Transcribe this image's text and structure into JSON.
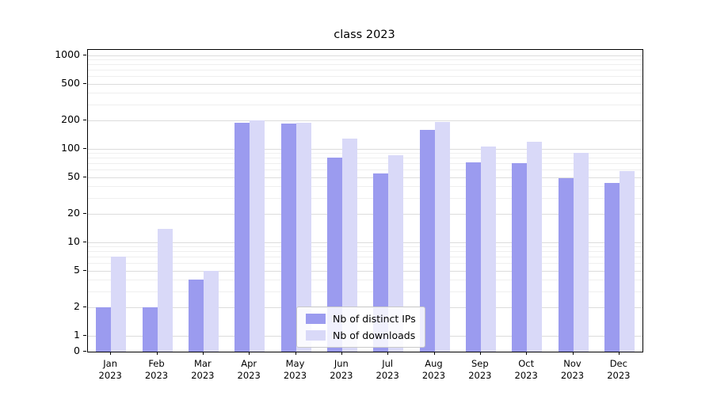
{
  "chart_data": {
    "type": "bar",
    "title": "class 2023",
    "categories": [
      "Jan",
      "Feb",
      "Mar",
      "Apr",
      "May",
      "Jun",
      "Jul",
      "Aug",
      "Sep",
      "Oct",
      "Nov",
      "Dec"
    ],
    "year_label": "2023",
    "xlabel": "",
    "ylabel": "",
    "yticks": [
      0,
      1,
      2,
      5,
      10,
      20,
      50,
      100,
      200,
      500,
      1000
    ],
    "ylim": [
      0,
      1000
    ],
    "yscale": "symlog",
    "grid": true,
    "legend_position": "lower center",
    "series": [
      {
        "name": "Nb of distinct IPs",
        "color": "#9b9bef",
        "values": [
          2,
          2,
          4,
          190,
          185,
          80,
          55,
          160,
          72,
          71,
          49,
          43
        ]
      },
      {
        "name": "Nb of downloads",
        "color": "#d9d9f8",
        "values": [
          7,
          14,
          5,
          200,
          190,
          130,
          85,
          195,
          105,
          120,
          90,
          58
        ]
      }
    ]
  }
}
